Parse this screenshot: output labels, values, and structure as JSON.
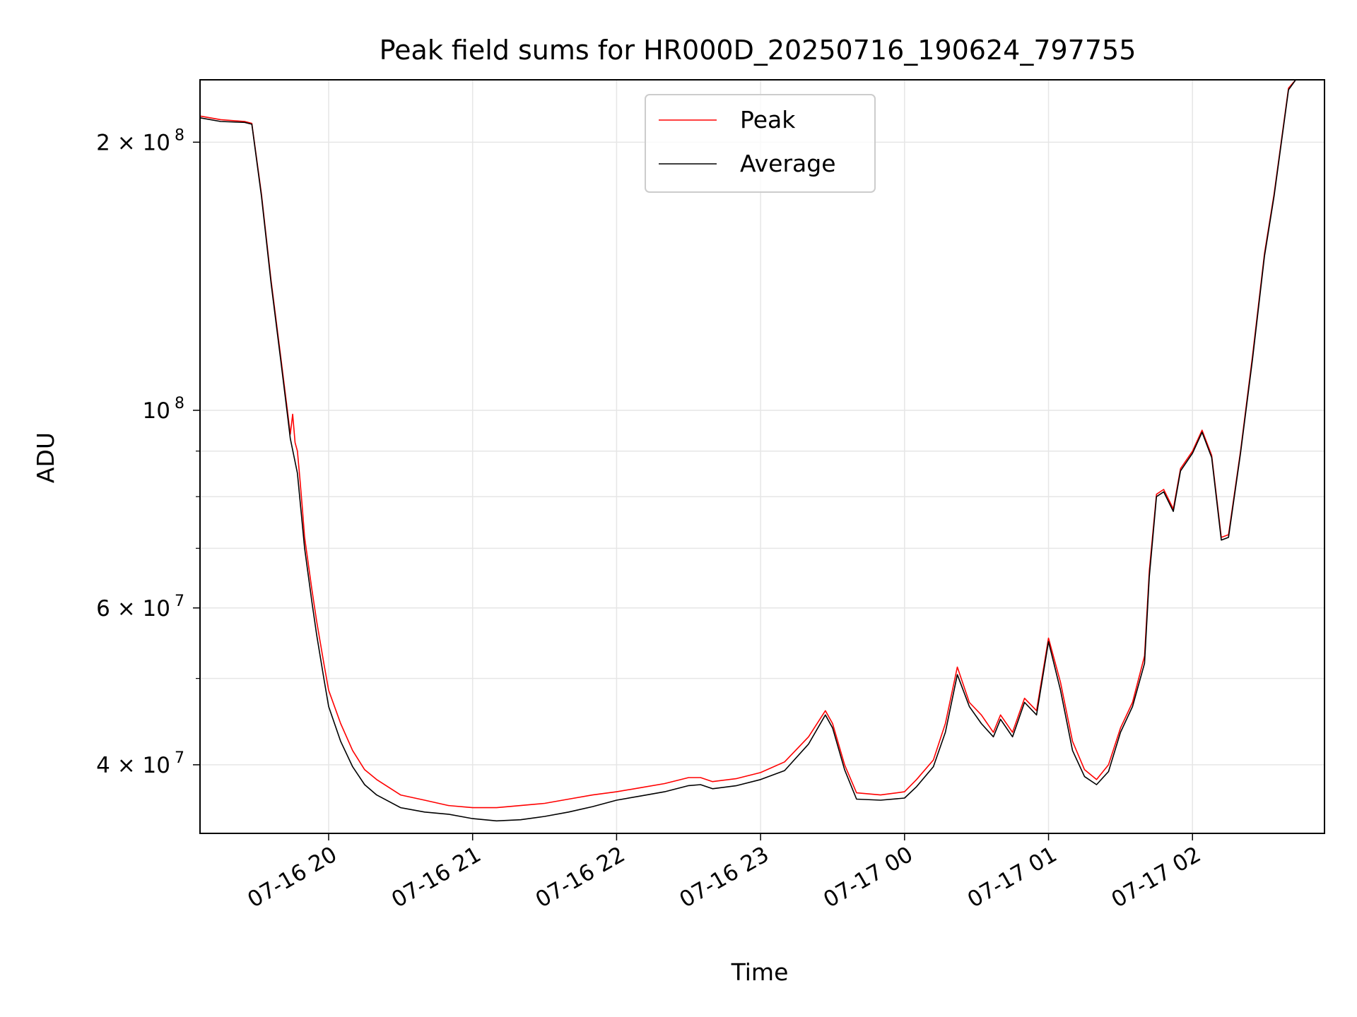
{
  "chart_data": {
    "type": "line",
    "title": "Peak field sums for HR000D_20250716_190624_797755",
    "xlabel": "Time",
    "ylabel": "ADU",
    "x_scale": "time",
    "y_scale": "log",
    "xlim": [
      "2025-07-16 19:06:24",
      "2025-07-17 02:55:00"
    ],
    "ylim": [
      33500000,
      235000000
    ],
    "grid": true,
    "legend_position": "upper-center",
    "x_ticks": [
      {
        "value": "2025-07-16 20:00",
        "label": "07-16 20"
      },
      {
        "value": "2025-07-16 21:00",
        "label": "07-16 21"
      },
      {
        "value": "2025-07-16 22:00",
        "label": "07-16 22"
      },
      {
        "value": "2025-07-16 23:00",
        "label": "07-16 23"
      },
      {
        "value": "2025-07-17 00:00",
        "label": "07-17 00"
      },
      {
        "value": "2025-07-17 01:00",
        "label": "07-17 01"
      },
      {
        "value": "2025-07-17 02:00",
        "label": "07-17 02"
      }
    ],
    "y_major_ticks": [
      {
        "value": 40000000,
        "base": "4 × 10",
        "exp": "7"
      },
      {
        "value": 60000000,
        "base": "6 × 10",
        "exp": "7"
      },
      {
        "value": 100000000,
        "base": "10",
        "exp": "8"
      },
      {
        "value": 200000000,
        "base": "2 × 10",
        "exp": "8"
      }
    ],
    "y_minor_ticks": [
      50000000,
      70000000,
      80000000,
      90000000
    ],
    "series": [
      {
        "name": "Peak",
        "color": "#ff0000",
        "points": [
          [
            "2025-07-16 19:06:24",
            214000000
          ],
          [
            "2025-07-16 19:15",
            212000000
          ],
          [
            "2025-07-16 19:25",
            211000000
          ],
          [
            "2025-07-16 19:28",
            210000000
          ],
          [
            "2025-07-16 19:32",
            175000000
          ],
          [
            "2025-07-16 19:36",
            140000000
          ],
          [
            "2025-07-16 19:40",
            115000000
          ],
          [
            "2025-07-16 19:43",
            99000000
          ],
          [
            "2025-07-16 19:44",
            94000000
          ],
          [
            "2025-07-16 19:45",
            99000000
          ],
          [
            "2025-07-16 19:46",
            92000000
          ],
          [
            "2025-07-16 19:47",
            90000000
          ],
          [
            "2025-07-16 19:48",
            84000000
          ],
          [
            "2025-07-16 19:49",
            78000000
          ],
          [
            "2025-07-16 19:50",
            72000000
          ],
          [
            "2025-07-16 19:53",
            63000000
          ],
          [
            "2025-07-16 19:55",
            58000000
          ],
          [
            "2025-07-16 19:58",
            52000000
          ],
          [
            "2025-07-16 20:00",
            48500000
          ],
          [
            "2025-07-16 20:05",
            44500000
          ],
          [
            "2025-07-16 20:10",
            41500000
          ],
          [
            "2025-07-16 20:15",
            39500000
          ],
          [
            "2025-07-16 20:20",
            38500000
          ],
          [
            "2025-07-16 20:30",
            37000000
          ],
          [
            "2025-07-16 20:40",
            36500000
          ],
          [
            "2025-07-16 20:50",
            36000000
          ],
          [
            "2025-07-16 21:00",
            35800000
          ],
          [
            "2025-07-16 21:10",
            35800000
          ],
          [
            "2025-07-16 21:20",
            36000000
          ],
          [
            "2025-07-16 21:30",
            36200000
          ],
          [
            "2025-07-16 21:40",
            36600000
          ],
          [
            "2025-07-16 21:50",
            37000000
          ],
          [
            "2025-07-16 22:00",
            37300000
          ],
          [
            "2025-07-16 22:10",
            37700000
          ],
          [
            "2025-07-16 22:20",
            38100000
          ],
          [
            "2025-07-16 22:30",
            38700000
          ],
          [
            "2025-07-16 22:35",
            38700000
          ],
          [
            "2025-07-16 22:40",
            38300000
          ],
          [
            "2025-07-16 22:50",
            38600000
          ],
          [
            "2025-07-16 23:00",
            39200000
          ],
          [
            "2025-07-16 23:10",
            40300000
          ],
          [
            "2025-07-16 23:20",
            43000000
          ],
          [
            "2025-07-16 23:27",
            46000000
          ],
          [
            "2025-07-16 23:30",
            44500000
          ],
          [
            "2025-07-16 23:35",
            40000000
          ],
          [
            "2025-07-16 23:40",
            37200000
          ],
          [
            "2025-07-16 23:50",
            37000000
          ],
          [
            "2025-07-17 00:00",
            37300000
          ],
          [
            "2025-07-17 00:05",
            38500000
          ],
          [
            "2025-07-17 00:12",
            40500000
          ],
          [
            "2025-07-17 00:17",
            44500000
          ],
          [
            "2025-07-17 00:22",
            51500000
          ],
          [
            "2025-07-17 00:27",
            47000000
          ],
          [
            "2025-07-17 00:32",
            45500000
          ],
          [
            "2025-07-17 00:37",
            43500000
          ],
          [
            "2025-07-17 00:40",
            45500000
          ],
          [
            "2025-07-17 00:45",
            43500000
          ],
          [
            "2025-07-17 00:50",
            47500000
          ],
          [
            "2025-07-17 00:55",
            46000000
          ],
          [
            "2025-07-17 01:00",
            55500000
          ],
          [
            "2025-07-17 01:05",
            49500000
          ],
          [
            "2025-07-17 01:10",
            42500000
          ],
          [
            "2025-07-17 01:15",
            39500000
          ],
          [
            "2025-07-17 01:20",
            38500000
          ],
          [
            "2025-07-17 01:25",
            40000000
          ],
          [
            "2025-07-17 01:30",
            44000000
          ],
          [
            "2025-07-17 01:35",
            47000000
          ],
          [
            "2025-07-17 01:40",
            53000000
          ],
          [
            "2025-07-17 01:42",
            66000000
          ],
          [
            "2025-07-17 01:45",
            80500000
          ],
          [
            "2025-07-17 01:48",
            81500000
          ],
          [
            "2025-07-17 01:52",
            77500000
          ],
          [
            "2025-07-17 01:55",
            86000000
          ],
          [
            "2025-07-17 02:00",
            90000000
          ],
          [
            "2025-07-17 02:04",
            95000000
          ],
          [
            "2025-07-17 02:08",
            89000000
          ],
          [
            "2025-07-17 02:12",
            72000000
          ],
          [
            "2025-07-17 02:15",
            72500000
          ],
          [
            "2025-07-17 02:20",
            90000000
          ],
          [
            "2025-07-17 02:25",
            115000000
          ],
          [
            "2025-07-17 02:30",
            150000000
          ],
          [
            "2025-07-17 02:34",
            175000000
          ],
          [
            "2025-07-17 02:40",
            230000000
          ],
          [
            "2025-07-17 02:43",
            236000000
          ]
        ]
      },
      {
        "name": "Average",
        "color": "#000000",
        "points": [
          [
            "2025-07-16 19:06:24",
            213000000
          ],
          [
            "2025-07-16 19:15",
            211000000
          ],
          [
            "2025-07-16 19:25",
            210500000
          ],
          [
            "2025-07-16 19:28",
            209500000
          ],
          [
            "2025-07-16 19:32",
            174000000
          ],
          [
            "2025-07-16 19:36",
            139000000
          ],
          [
            "2025-07-16 19:40",
            114000000
          ],
          [
            "2025-07-16 19:43",
            98000000
          ],
          [
            "2025-07-16 19:44",
            93000000
          ],
          [
            "2025-07-16 19:47",
            85000000
          ],
          [
            "2025-07-16 19:50",
            70000000
          ],
          [
            "2025-07-16 19:53",
            61000000
          ],
          [
            "2025-07-16 19:55",
            56000000
          ],
          [
            "2025-07-16 19:58",
            50000000
          ],
          [
            "2025-07-16 20:00",
            46500000
          ],
          [
            "2025-07-16 20:05",
            42500000
          ],
          [
            "2025-07-16 20:10",
            39800000
          ],
          [
            "2025-07-16 20:15",
            38000000
          ],
          [
            "2025-07-16 20:20",
            37000000
          ],
          [
            "2025-07-16 20:30",
            35800000
          ],
          [
            "2025-07-16 20:40",
            35400000
          ],
          [
            "2025-07-16 20:50",
            35200000
          ],
          [
            "2025-07-16 21:00",
            34800000
          ],
          [
            "2025-07-16 21:10",
            34600000
          ],
          [
            "2025-07-16 21:20",
            34700000
          ],
          [
            "2025-07-16 21:30",
            35000000
          ],
          [
            "2025-07-16 21:40",
            35400000
          ],
          [
            "2025-07-16 21:50",
            35900000
          ],
          [
            "2025-07-16 22:00",
            36500000
          ],
          [
            "2025-07-16 22:10",
            36900000
          ],
          [
            "2025-07-16 22:20",
            37300000
          ],
          [
            "2025-07-16 22:30",
            37900000
          ],
          [
            "2025-07-16 22:35",
            38000000
          ],
          [
            "2025-07-16 22:40",
            37600000
          ],
          [
            "2025-07-16 22:50",
            37900000
          ],
          [
            "2025-07-16 23:00",
            38500000
          ],
          [
            "2025-07-16 23:10",
            39400000
          ],
          [
            "2025-07-16 23:20",
            42200000
          ],
          [
            "2025-07-16 23:27",
            45500000
          ],
          [
            "2025-07-16 23:30",
            44000000
          ],
          [
            "2025-07-16 23:35",
            39500000
          ],
          [
            "2025-07-16 23:40",
            36600000
          ],
          [
            "2025-07-16 23:50",
            36500000
          ],
          [
            "2025-07-17 00:00",
            36700000
          ],
          [
            "2025-07-17 00:05",
            37800000
          ],
          [
            "2025-07-17 00:12",
            39800000
          ],
          [
            "2025-07-17 00:17",
            43500000
          ],
          [
            "2025-07-17 00:22",
            50500000
          ],
          [
            "2025-07-17 00:27",
            46500000
          ],
          [
            "2025-07-17 00:32",
            44500000
          ],
          [
            "2025-07-17 00:37",
            43000000
          ],
          [
            "2025-07-17 00:40",
            45000000
          ],
          [
            "2025-07-17 00:45",
            43000000
          ],
          [
            "2025-07-17 00:50",
            47000000
          ],
          [
            "2025-07-17 00:55",
            45500000
          ],
          [
            "2025-07-17 01:00",
            55000000
          ],
          [
            "2025-07-17 01:05",
            48500000
          ],
          [
            "2025-07-17 01:10",
            41500000
          ],
          [
            "2025-07-17 01:15",
            38800000
          ],
          [
            "2025-07-17 01:20",
            38000000
          ],
          [
            "2025-07-17 01:25",
            39300000
          ],
          [
            "2025-07-17 01:30",
            43500000
          ],
          [
            "2025-07-17 01:35",
            46500000
          ],
          [
            "2025-07-17 01:40",
            52000000
          ],
          [
            "2025-07-17 01:42",
            65000000
          ],
          [
            "2025-07-17 01:45",
            80000000
          ],
          [
            "2025-07-17 01:48",
            81000000
          ],
          [
            "2025-07-17 01:52",
            77000000
          ],
          [
            "2025-07-17 01:55",
            85500000
          ],
          [
            "2025-07-17 02:00",
            89500000
          ],
          [
            "2025-07-17 02:04",
            94500000
          ],
          [
            "2025-07-17 02:08",
            88500000
          ],
          [
            "2025-07-17 02:12",
            71500000
          ],
          [
            "2025-07-17 02:15",
            72000000
          ],
          [
            "2025-07-17 02:20",
            89500000
          ],
          [
            "2025-07-17 02:25",
            114000000
          ],
          [
            "2025-07-17 02:30",
            149000000
          ],
          [
            "2025-07-17 02:34",
            174000000
          ],
          [
            "2025-07-17 02:40",
            229000000
          ],
          [
            "2025-07-17 02:43",
            235000000
          ]
        ]
      }
    ]
  }
}
